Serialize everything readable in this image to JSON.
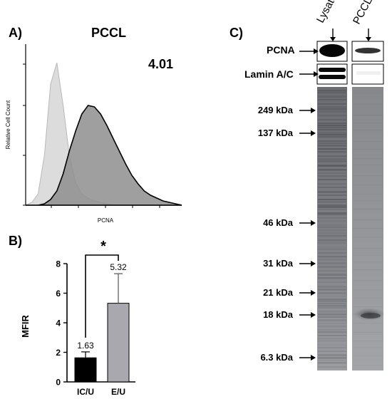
{
  "panels": {
    "a": {
      "letter": "A)",
      "title": "PCCL",
      "value": "4.01",
      "ylabel": "Relative Cell Count",
      "xlabel": "PCNA"
    },
    "b": {
      "letter": "B)",
      "ylabel": "MFIR",
      "significance": "*"
    },
    "c": {
      "letter": "C)",
      "lanes": [
        "Lysate",
        "PCCL"
      ],
      "bands": [
        "PCNA",
        "Lamin A/C"
      ],
      "markers": [
        "249 kDa",
        "137 kDa",
        "46 kDa",
        "31 kDa",
        "21 kDa",
        "18 kDa",
        "6.3 kDa"
      ]
    }
  },
  "chart_data": [
    {
      "type": "area",
      "title": "PCCL",
      "xlabel": "PCNA",
      "ylabel": "Relative Cell Count",
      "annotation": "4.01",
      "series": [
        {
          "values": [
            0,
            0.02,
            0.08,
            0.35,
            0.85,
            1.0,
            0.7,
            0.35,
            0.16,
            0.08,
            0.05,
            0.03,
            0.02,
            0.01,
            0,
            0,
            0,
            0,
            0,
            0,
            0,
            0,
            0,
            0,
            0,
            0
          ]
        },
        {
          "values": [
            0,
            0,
            0,
            0.01,
            0.04,
            0.1,
            0.22,
            0.38,
            0.52,
            0.64,
            0.7,
            0.69,
            0.64,
            0.56,
            0.47,
            0.38,
            0.29,
            0.21,
            0.15,
            0.1,
            0.07,
            0.05,
            0.03,
            0.02,
            0.01,
            0
          ]
        }
      ],
      "legend": "none"
    },
    {
      "type": "bar",
      "categories": [
        "IC/U",
        "E/U"
      ],
      "values": [
        1.63,
        5.32
      ],
      "errors": [
        0.4,
        2.0
      ],
      "ylabel": "MFIR",
      "ylim": [
        0,
        8
      ],
      "yticks": [
        0,
        2,
        4,
        6,
        8
      ],
      "colors": [
        "#000000",
        "#a8a8ae"
      ],
      "significance": "*"
    }
  ]
}
